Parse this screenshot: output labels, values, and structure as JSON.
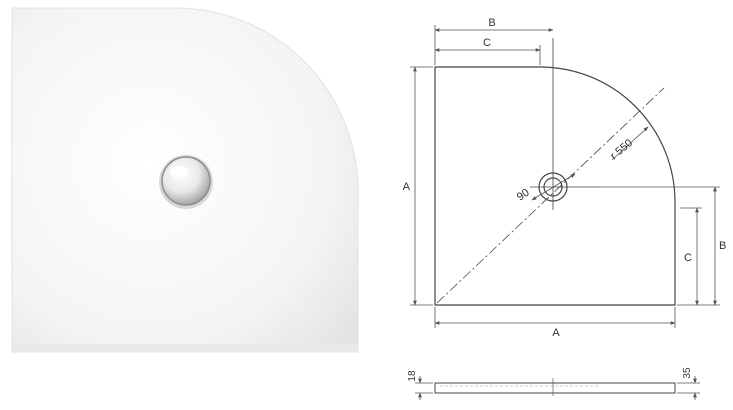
{
  "colors": {
    "tray_light": "#f7f7f7",
    "tray_shadow": "#d6d6d6",
    "line": "#444444",
    "dim_line": "#555555"
  },
  "labels": {
    "A": "A",
    "B": "B",
    "C": "C",
    "radius": "r 550",
    "drain": "90",
    "thickness_base": "18",
    "thickness_total": "35"
  }
}
